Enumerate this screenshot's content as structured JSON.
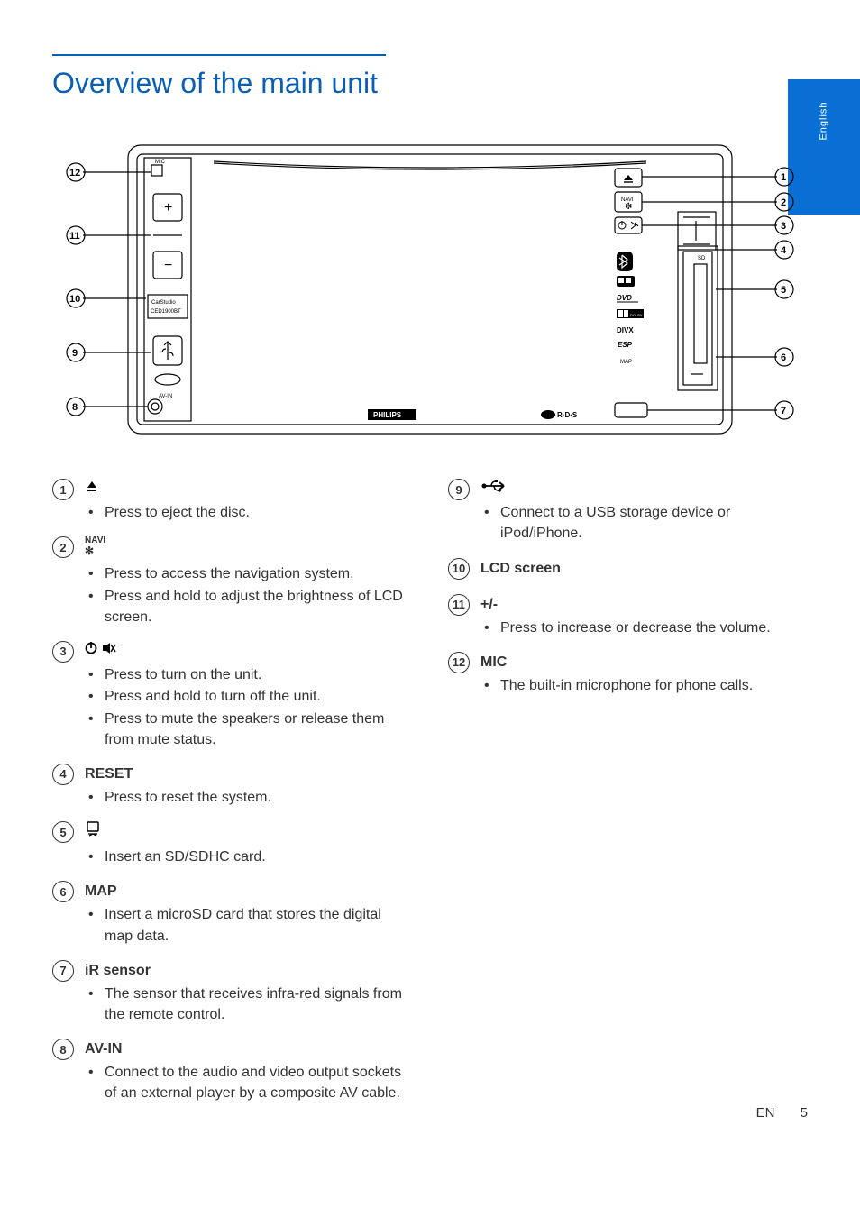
{
  "title": "Overview of the main unit",
  "side_tab": "English",
  "diagram": {
    "left_callouts": [
      "12",
      "11",
      "10",
      "9",
      "8"
    ],
    "right_callouts": [
      "1",
      "2",
      "3",
      "4",
      "5",
      "6",
      "7"
    ],
    "left_panel_buttons": [
      "+",
      "−"
    ],
    "left_panel_text": [
      "CarStudio",
      "CED1900BT"
    ],
    "left_panel_avin": "AV-IN",
    "left_panel_mic": "MIC",
    "right_panel_labels": [
      "NAVI",
      "DVD",
      "DIVX",
      "ESP",
      "MAP"
    ],
    "right_panel_dolby": "DOLBY",
    "bottom_brand": "PHILIPS",
    "bottom_rds": "R·D·S",
    "sd_slot_label": "SD",
    "usb_icon": "⇐⇒"
  },
  "items_left": [
    {
      "n": "1",
      "label_type": "icon",
      "icon": "eject",
      "bullets": [
        "Press to eject the disc."
      ]
    },
    {
      "n": "2",
      "label_type": "icon",
      "icon": "navi",
      "bullets": [
        "Press to access the navigation system.",
        "Press and hold to adjust the brightness of LCD screen."
      ]
    },
    {
      "n": "3",
      "label_type": "icon",
      "icon": "power-mute",
      "bullets": [
        "Press to turn on the unit.",
        "Press and hold to turn off the unit.",
        "Press to mute the speakers or release them from mute status."
      ]
    },
    {
      "n": "4",
      "label_type": "text",
      "label": "RESET",
      "bullets": [
        "Press to reset the system."
      ]
    },
    {
      "n": "5",
      "label_type": "icon",
      "icon": "sd",
      "bullets": [
        "Insert an SD/SDHC card."
      ]
    },
    {
      "n": "6",
      "label_type": "text",
      "label": "MAP",
      "bullets": [
        "Insert a microSD card that stores the digital map data."
      ]
    },
    {
      "n": "7",
      "label_type": "text",
      "label": "iR sensor",
      "bullets": [
        "The sensor that receives infra-red signals from the remote control."
      ]
    },
    {
      "n": "8",
      "label_type": "text",
      "label": "AV-IN",
      "bullets": [
        "Connect to the audio and video output sockets of an external player by a composite AV cable."
      ]
    }
  ],
  "items_right": [
    {
      "n": "9",
      "label_type": "icon",
      "icon": "usb",
      "bullets": [
        "Connect to a USB storage device or iPod/iPhone."
      ]
    },
    {
      "n": "10",
      "label_type": "text",
      "label": "LCD screen",
      "bullets": []
    },
    {
      "n": "11",
      "label_type": "text",
      "label": "+/-",
      "bullets": [
        "Press to increase or decrease the volume."
      ]
    },
    {
      "n": "12",
      "label_type": "text",
      "label": "MIC",
      "bullets": [
        "The built-in microphone for phone calls."
      ]
    }
  ],
  "footer": {
    "lang": "EN",
    "page": "5"
  }
}
